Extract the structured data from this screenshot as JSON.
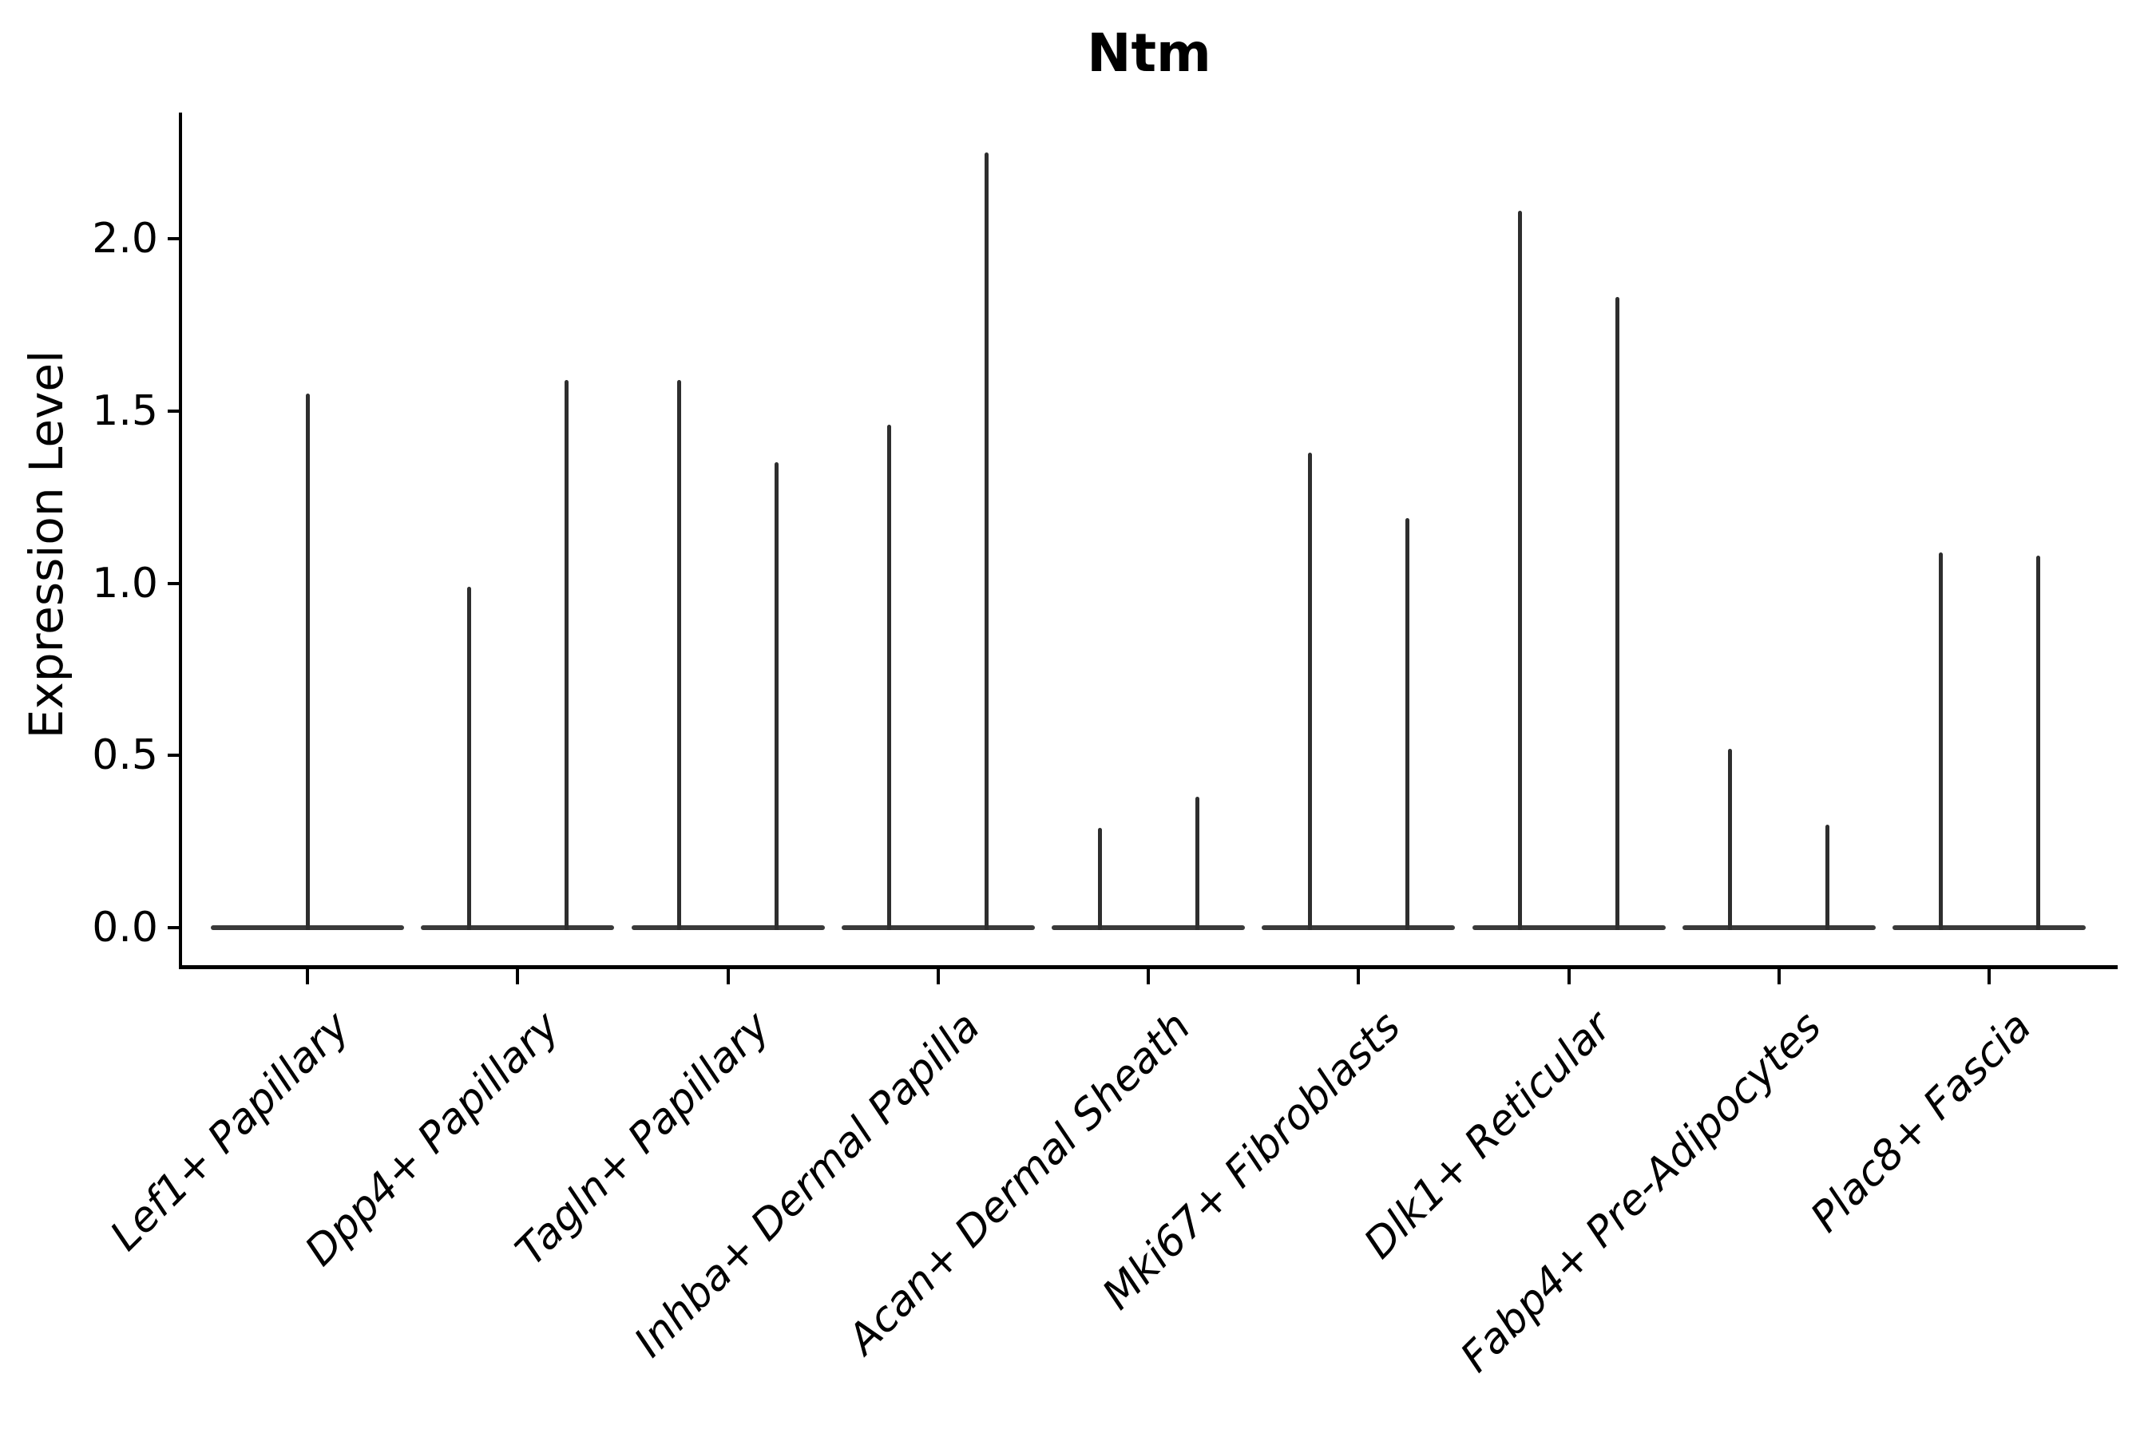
{
  "chart_data": {
    "type": "violin",
    "title": "Ntm",
    "xlabel": "",
    "ylabel": "Expression Level",
    "ytick_labels": [
      "0.0",
      "0.5",
      "1.0",
      "1.5",
      "2.0"
    ],
    "ytick_values": [
      0.0,
      0.5,
      1.0,
      1.5,
      2.0
    ],
    "ylim": [
      -0.11,
      2.37
    ],
    "grid": false,
    "legend": "none",
    "categories": [
      "Lef1+ Papillary",
      "Dpp4+ Papillary",
      "Tagln+ Papillary",
      "Inhba+ Dermal Papilla",
      "Acan+ Dermal Sheath",
      "Mki67+ Fibroblasts",
      "Dlk1+ Reticular",
      "Fabp4+ Pre-Adipocytes",
      "Plac8+ Fascia"
    ],
    "series": [
      {
        "category": "Lef1+ Papillary",
        "violin_peaks": [
          1.55
        ]
      },
      {
        "category": "Dpp4+ Papillary",
        "violin_peaks": [
          0.99,
          1.59
        ]
      },
      {
        "category": "Tagln+ Papillary",
        "violin_peaks": [
          1.59,
          1.35
        ]
      },
      {
        "category": "Inhba+ Dermal Papilla",
        "violin_peaks": [
          1.46,
          2.25
        ]
      },
      {
        "category": "Acan+ Dermal Sheath",
        "violin_peaks": [
          0.29,
          0.38
        ]
      },
      {
        "category": "Mki67+ Fibroblasts",
        "violin_peaks": [
          1.38,
          1.19
        ]
      },
      {
        "category": "Dlk1+ Reticular",
        "violin_peaks": [
          2.08,
          1.83
        ]
      },
      {
        "category": "Fabp4+ Pre-Adipocytes",
        "violin_peaks": [
          0.52,
          0.3
        ]
      },
      {
        "category": "Plac8+ Fascia",
        "violin_peaks": [
          1.09,
          1.08
        ]
      }
    ],
    "violin_baseline_value": 0.0,
    "colors": {
      "violin_line": "#2e2e2e",
      "axis": "#000000",
      "background": "#ffffff"
    }
  }
}
